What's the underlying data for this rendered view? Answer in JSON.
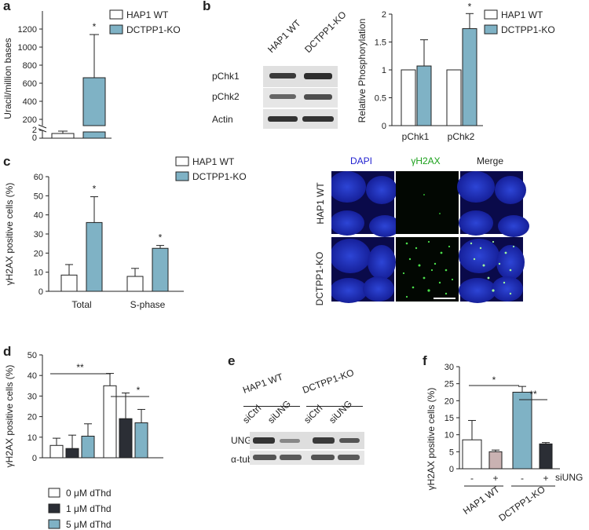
{
  "colors": {
    "wt": "#ffffff",
    "ko": "#7fb2c5",
    "dark": "#2b2e35",
    "pink": "#c9b2b2",
    "stroke": "#222222"
  },
  "panels": {
    "a": {
      "letter": "a"
    },
    "b": {
      "letter": "b"
    },
    "c": {
      "letter": "c"
    },
    "d": {
      "letter": "d"
    },
    "e": {
      "letter": "e"
    },
    "f": {
      "letter": "f"
    }
  },
  "chart_data": [
    {
      "id": "a",
      "type": "bar",
      "ylabel": "Uracil/million bases",
      "yticks": [
        "0",
        "2",
        "200",
        "400",
        "600",
        "800",
        "1000",
        "1200"
      ],
      "legend": [
        "HAP1 WT",
        "DCTPP1-KO"
      ],
      "series": [
        {
          "name": "HAP1 WT",
          "values": [
            0.6
          ],
          "errors": [
            0.4
          ]
        },
        {
          "name": "DCTPP1-KO",
          "values": [
            620
          ],
          "errors": [
            450
          ]
        }
      ],
      "significance": [
        "*"
      ]
    },
    {
      "id": "b",
      "type": "bar",
      "ylabel": "Relative Phosphorylation",
      "categories": [
        "pChk1",
        "pChk2"
      ],
      "ylim": [
        0,
        2
      ],
      "yticks": [
        "0",
        "0.5",
        "1",
        "1.5",
        "2"
      ],
      "legend": [
        "HAP1 WT",
        "DCTPP1-KO"
      ],
      "series": [
        {
          "name": "HAP1 WT",
          "values": [
            1.0,
            1.0
          ],
          "errors": [
            0,
            0
          ]
        },
        {
          "name": "DCTPP1-KO",
          "values": [
            1.07,
            1.74
          ],
          "errors": [
            0.47,
            0.27
          ]
        }
      ],
      "significance": [
        "",
        "*"
      ]
    },
    {
      "id": "c",
      "type": "bar",
      "ylabel": "γH2AX positive cells (%)",
      "categories": [
        "Total",
        "S-phase"
      ],
      "ylim": [
        0,
        60
      ],
      "yticks": [
        "0",
        "10",
        "20",
        "30",
        "40",
        "50",
        "60"
      ],
      "legend": [
        "HAP1 WT",
        "DCTPP1-KO"
      ],
      "series": [
        {
          "name": "HAP1 WT",
          "values": [
            8.5,
            7.8
          ],
          "errors": [
            5.5,
            4.2
          ]
        },
        {
          "name": "DCTPP1-KO",
          "values": [
            36,
            22.5
          ],
          "errors": [
            13.5,
            1.5
          ]
        }
      ],
      "significance": [
        "*",
        "*"
      ]
    },
    {
      "id": "d",
      "type": "bar",
      "ylabel": "γH2AX positive cells (%)",
      "ylim": [
        0,
        50
      ],
      "yticks": [
        "0",
        "10",
        "20",
        "30",
        "40",
        "50"
      ],
      "legend": [
        "0 μM dThd",
        "1 μM dThd",
        "5 μM dThd"
      ],
      "groups": [
        {
          "values": [
            6,
            4.5,
            10.5
          ],
          "errors": [
            3.5,
            6.5,
            6
          ]
        },
        {
          "values": [
            35,
            19,
            17
          ],
          "errors": [
            6,
            12.5,
            6.5
          ]
        }
      ],
      "significance": [
        "**",
        "*"
      ]
    },
    {
      "id": "f",
      "type": "bar",
      "ylabel": "γH2AX positive cells (%)",
      "ylim": [
        0,
        30
      ],
      "yticks": [
        "0",
        "5",
        "10",
        "15",
        "20",
        "25",
        "30"
      ],
      "bars": [
        {
          "value": 8.5,
          "error": 5.7,
          "sign": "-"
        },
        {
          "value": 5,
          "error": 0.5,
          "sign": "+"
        },
        {
          "value": 22.5,
          "error": 1.7,
          "sign": "-"
        },
        {
          "value": 7.3,
          "error": 0.4,
          "sign": "+"
        }
      ],
      "condition_label": "siUNG",
      "group_labels": [
        "HAP1 WT",
        "DCTPP1-KO"
      ],
      "significance": [
        "*",
        "**"
      ]
    }
  ],
  "blot_b": {
    "columns": [
      "HAP1 WT",
      "DCTPP1-KO"
    ],
    "rows": [
      "pChk1",
      "pChk2",
      "Actin"
    ]
  },
  "blot_e": {
    "groups": [
      "HAP1 WT",
      "DCTPP1-KO"
    ],
    "lanes": [
      "siCtrl",
      "siUNG",
      "siCtrl",
      "siUNG"
    ],
    "rows": [
      "UNG",
      "α-tubulin"
    ]
  },
  "micro": {
    "columns": [
      "DAPI",
      "γH2AX",
      "Merge"
    ],
    "rows": [
      "HAP1 WT",
      "DCTPP1-KO"
    ]
  }
}
